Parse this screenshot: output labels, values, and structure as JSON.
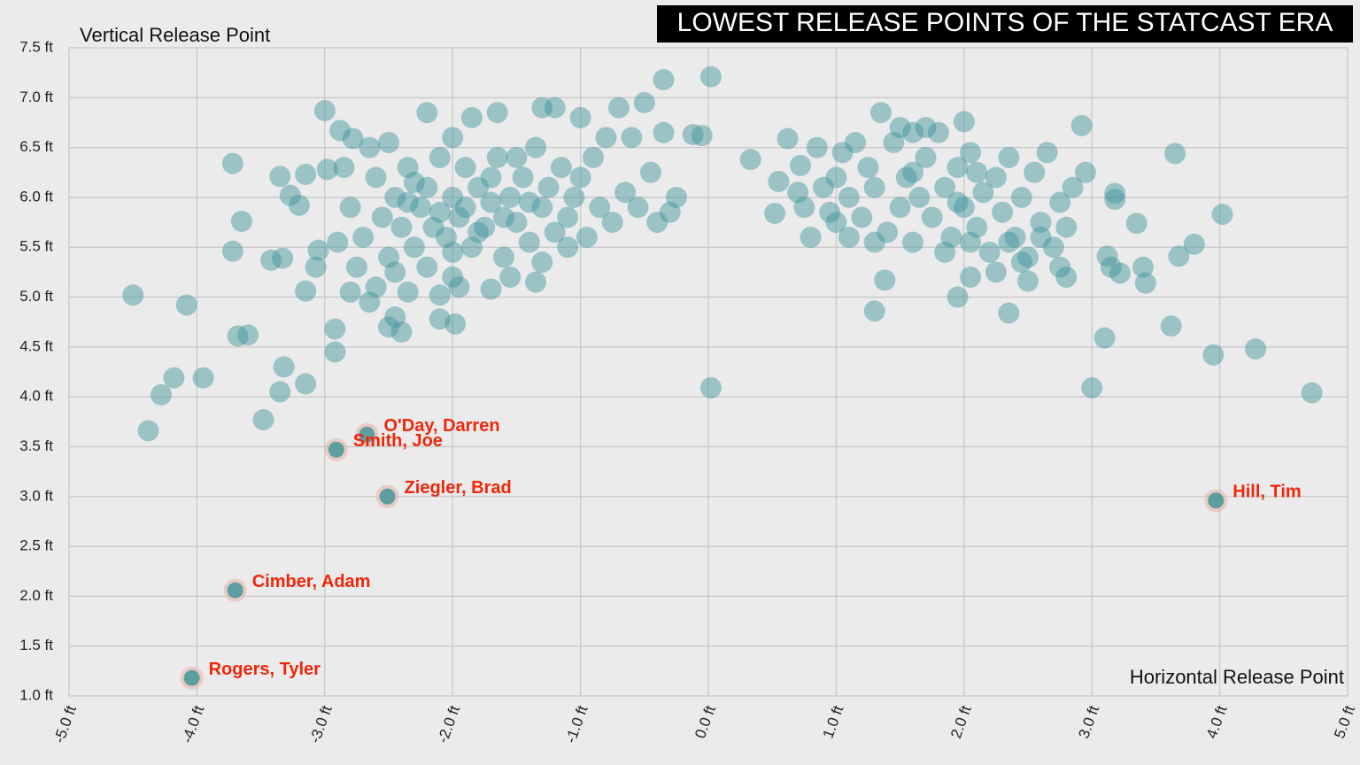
{
  "chart_data": {
    "type": "scatter",
    "title": "LOWEST RELEASE POINTS OF THE STATCAST ERA",
    "y_label": "Vertical Release Point",
    "x_label": "Horizontal Release Point",
    "color": "#3a9399",
    "highlight_color": "#f0260a",
    "grid": true,
    "xlim": [
      -5,
      5
    ],
    "ylim": [
      1,
      7.5
    ],
    "xticks": [
      {
        "value": -5,
        "label": "-5.0 ft"
      },
      {
        "value": -4,
        "label": "-4.0 ft"
      },
      {
        "value": -3,
        "label": "-3.0 ft"
      },
      {
        "value": -2,
        "label": "-2.0 ft"
      },
      {
        "value": -1,
        "label": "-1.0 ft"
      },
      {
        "value": 0,
        "label": "0.0 ft"
      },
      {
        "value": 1,
        "label": "1.0 ft"
      },
      {
        "value": 2,
        "label": "2.0 ft"
      },
      {
        "value": 3,
        "label": "3.0 ft"
      },
      {
        "value": 4,
        "label": "4.0 ft"
      },
      {
        "value": 5,
        "label": "5.0 ft"
      }
    ],
    "yticks": [
      {
        "value": 1,
        "label": "1.0 ft"
      },
      {
        "value": 1.5,
        "label": "1.5 ft"
      },
      {
        "value": 2,
        "label": "2.0 ft"
      },
      {
        "value": 2.5,
        "label": "2.5 ft"
      },
      {
        "value": 3,
        "label": "3.0 ft"
      },
      {
        "value": 3.5,
        "label": "3.5 ft"
      },
      {
        "value": 4,
        "label": "4.0 ft"
      },
      {
        "value": 4.5,
        "label": "4.5 ft"
      },
      {
        "value": 5,
        "label": "5.0 ft"
      },
      {
        "value": 5.5,
        "label": "5.5 ft"
      },
      {
        "value": 6,
        "label": "6.0 ft"
      },
      {
        "value": 6.5,
        "label": "6.5 ft"
      },
      {
        "value": 7,
        "label": "7.0 ft"
      },
      {
        "value": 7.5,
        "label": "7.5 ft"
      }
    ],
    "points": [
      {
        "x": -4.5,
        "y": 5.02
      },
      {
        "x": -4.08,
        "y": 4.92
      },
      {
        "x": -4.28,
        "y": 4.02
      },
      {
        "x": -4.38,
        "y": 3.66
      },
      {
        "x": -4.18,
        "y": 4.19
      },
      {
        "x": -3.95,
        "y": 4.19
      },
      {
        "x": -3.72,
        "y": 6.34
      },
      {
        "x": -3.72,
        "y": 5.46
      },
      {
        "x": -3.68,
        "y": 4.61
      },
      {
        "x": -3.6,
        "y": 4.62
      },
      {
        "x": -3.65,
        "y": 5.76
      },
      {
        "x": -3.48,
        "y": 3.77
      },
      {
        "x": -3.35,
        "y": 4.05
      },
      {
        "x": -3.32,
        "y": 4.3
      },
      {
        "x": -3.42,
        "y": 5.37
      },
      {
        "x": -3.33,
        "y": 5.39
      },
      {
        "x": -3.15,
        "y": 4.13
      },
      {
        "x": -2.92,
        "y": 4.45
      },
      {
        "x": -2.92,
        "y": 4.68
      },
      {
        "x": -3.15,
        "y": 5.06
      },
      {
        "x": -3.07,
        "y": 5.3
      },
      {
        "x": -3.27,
        "y": 6.02
      },
      {
        "x": -3.35,
        "y": 6.21
      },
      {
        "x": -3.0,
        "y": 6.87
      },
      {
        "x": -2.88,
        "y": 6.67
      },
      {
        "x": -2.78,
        "y": 6.59
      },
      {
        "x": -3.15,
        "y": 6.23
      },
      {
        "x": -3.05,
        "y": 5.47
      },
      {
        "x": -2.98,
        "y": 6.28
      },
      {
        "x": -3.2,
        "y": 5.92
      },
      {
        "x": -2.8,
        "y": 5.05
      },
      {
        "x": -2.65,
        "y": 4.95
      },
      {
        "x": -2.5,
        "y": 4.7
      },
      {
        "x": -2.4,
        "y": 4.65
      },
      {
        "x": -2.45,
        "y": 4.8
      },
      {
        "x": -2.1,
        "y": 4.78
      },
      {
        "x": -1.98,
        "y": 4.73
      },
      {
        "x": -2.35,
        "y": 5.05
      },
      {
        "x": -2.1,
        "y": 5.02
      },
      {
        "x": -1.7,
        "y": 5.08
      },
      {
        "x": -1.35,
        "y": 5.15
      },
      {
        "x": -2.8,
        "y": 5.9
      },
      {
        "x": -2.7,
        "y": 5.6
      },
      {
        "x": -2.6,
        "y": 6.2
      },
      {
        "x": -2.55,
        "y": 5.8
      },
      {
        "x": -2.5,
        "y": 5.4
      },
      {
        "x": -2.45,
        "y": 6.0
      },
      {
        "x": -2.4,
        "y": 5.7
      },
      {
        "x": -2.35,
        "y": 6.3
      },
      {
        "x": -2.3,
        "y": 5.5
      },
      {
        "x": -2.25,
        "y": 5.9
      },
      {
        "x": -2.2,
        "y": 6.1
      },
      {
        "x": -2.2,
        "y": 5.3
      },
      {
        "x": -2.15,
        "y": 5.7
      },
      {
        "x": -2.1,
        "y": 6.4
      },
      {
        "x": -2.05,
        "y": 5.6
      },
      {
        "x": -2.0,
        "y": 6.0
      },
      {
        "x": -2.0,
        "y": 5.2
      },
      {
        "x": -1.95,
        "y": 5.8
      },
      {
        "x": -1.9,
        "y": 6.3
      },
      {
        "x": -1.85,
        "y": 5.5
      },
      {
        "x": -1.8,
        "y": 6.1
      },
      {
        "x": -1.75,
        "y": 5.7
      },
      {
        "x": -1.7,
        "y": 5.95
      },
      {
        "x": -1.65,
        "y": 6.4
      },
      {
        "x": -1.6,
        "y": 5.4
      },
      {
        "x": -1.55,
        "y": 6.0
      },
      {
        "x": -1.5,
        "y": 5.75
      },
      {
        "x": -1.45,
        "y": 6.2
      },
      {
        "x": -1.4,
        "y": 5.55
      },
      {
        "x": -1.35,
        "y": 6.5
      },
      {
        "x": -1.3,
        "y": 5.9
      },
      {
        "x": -1.25,
        "y": 6.1
      },
      {
        "x": -1.2,
        "y": 5.65
      },
      {
        "x": -1.15,
        "y": 6.3
      },
      {
        "x": -1.1,
        "y": 5.8
      },
      {
        "x": -1.05,
        "y": 6.0
      },
      {
        "x": -1.0,
        "y": 6.2
      },
      {
        "x": -0.95,
        "y": 5.6
      },
      {
        "x": -0.9,
        "y": 6.4
      },
      {
        "x": -0.85,
        "y": 5.9
      },
      {
        "x": -0.8,
        "y": 6.6
      },
      {
        "x": -0.75,
        "y": 5.75
      },
      {
        "x": -0.7,
        "y": 6.9
      },
      {
        "x": -0.65,
        "y": 6.05
      },
      {
        "x": -0.6,
        "y": 6.6
      },
      {
        "x": -0.55,
        "y": 5.9
      },
      {
        "x": -0.5,
        "y": 6.95
      },
      {
        "x": -0.45,
        "y": 6.25
      },
      {
        "x": -0.4,
        "y": 5.75
      },
      {
        "x": -0.35,
        "y": 6.65
      },
      {
        "x": -0.3,
        "y": 5.85
      },
      {
        "x": -0.25,
        "y": 6.0
      },
      {
        "x": -2.65,
        "y": 6.5
      },
      {
        "x": -2.5,
        "y": 6.55
      },
      {
        "x": -2.2,
        "y": 6.85
      },
      {
        "x": -2.0,
        "y": 6.6
      },
      {
        "x": -1.85,
        "y": 6.8
      },
      {
        "x": -1.65,
        "y": 6.85
      },
      {
        "x": -1.3,
        "y": 6.9
      },
      {
        "x": -1.2,
        "y": 6.9
      },
      {
        "x": -1.0,
        "y": 6.8
      },
      {
        "x": -2.75,
        "y": 5.3
      },
      {
        "x": -2.6,
        "y": 5.1
      },
      {
        "x": -2.45,
        "y": 5.25
      },
      {
        "x": -1.95,
        "y": 5.1
      },
      {
        "x": -1.55,
        "y": 5.2
      },
      {
        "x": -1.3,
        "y": 5.35
      },
      {
        "x": -1.1,
        "y": 5.5
      },
      {
        "x": -2.85,
        "y": 6.3
      },
      {
        "x": -2.9,
        "y": 5.55
      },
      {
        "x": -2.35,
        "y": 5.95
      },
      {
        "x": -2.1,
        "y": 5.85
      },
      {
        "x": -1.9,
        "y": 5.9
      },
      {
        "x": -1.7,
        "y": 6.2
      },
      {
        "x": -1.5,
        "y": 6.4
      },
      {
        "x": -1.4,
        "y": 5.95
      },
      {
        "x": -2.3,
        "y": 6.15
      },
      {
        "x": -2.0,
        "y": 5.45
      },
      {
        "x": -1.8,
        "y": 5.65
      },
      {
        "x": -1.6,
        "y": 5.8
      },
      {
        "x": 0.02,
        "y": 7.21
      },
      {
        "x": -0.35,
        "y": 7.18
      },
      {
        "x": 0.02,
        "y": 4.09
      },
      {
        "x": -0.05,
        "y": 6.62
      },
      {
        "x": -0.12,
        "y": 6.63
      },
      {
        "x": 0.33,
        "y": 6.38
      },
      {
        "x": 0.52,
        "y": 5.84
      },
      {
        "x": 0.55,
        "y": 6.16
      },
      {
        "x": 0.62,
        "y": 6.59
      },
      {
        "x": 0.8,
        "y": 5.6
      },
      {
        "x": 0.72,
        "y": 6.32
      },
      {
        "x": 1.0,
        "y": 6.2
      },
      {
        "x": 1.1,
        "y": 5.6
      },
      {
        "x": 1.3,
        "y": 4.86
      },
      {
        "x": 1.38,
        "y": 5.17
      },
      {
        "x": 1.35,
        "y": 6.85
      },
      {
        "x": 1.6,
        "y": 6.65
      },
      {
        "x": 1.95,
        "y": 5.0
      },
      {
        "x": 2.0,
        "y": 6.76
      },
      {
        "x": 2.35,
        "y": 4.84
      },
      {
        "x": 2.5,
        "y": 5.16
      },
      {
        "x": 2.92,
        "y": 6.72
      },
      {
        "x": 3.0,
        "y": 4.09
      },
      {
        "x": 3.1,
        "y": 4.59
      },
      {
        "x": 3.65,
        "y": 6.44
      },
      {
        "x": 3.62,
        "y": 4.71
      },
      {
        "x": 3.95,
        "y": 4.42
      },
      {
        "x": 4.02,
        "y": 5.83
      },
      {
        "x": 4.28,
        "y": 4.48
      },
      {
        "x": 4.72,
        "y": 4.04
      },
      {
        "x": 3.8,
        "y": 5.53
      },
      {
        "x": 3.42,
        "y": 5.14
      },
      {
        "x": 3.4,
        "y": 5.3
      },
      {
        "x": 3.68,
        "y": 5.41
      },
      {
        "x": 3.35,
        "y": 5.74
      },
      {
        "x": 3.18,
        "y": 5.98
      },
      {
        "x": 3.18,
        "y": 6.04
      },
      {
        "x": 3.12,
        "y": 5.41
      },
      {
        "x": 3.15,
        "y": 5.3
      },
      {
        "x": 3.22,
        "y": 5.24
      },
      {
        "x": 2.8,
        "y": 5.2
      },
      {
        "x": 2.95,
        "y": 6.25
      },
      {
        "x": 0.7,
        "y": 6.05
      },
      {
        "x": 0.75,
        "y": 5.9
      },
      {
        "x": 0.85,
        "y": 6.5
      },
      {
        "x": 0.9,
        "y": 6.1
      },
      {
        "x": 0.95,
        "y": 5.85
      },
      {
        "x": 1.05,
        "y": 6.45
      },
      {
        "x": 1.1,
        "y": 6.0
      },
      {
        "x": 1.2,
        "y": 5.8
      },
      {
        "x": 1.25,
        "y": 6.3
      },
      {
        "x": 1.3,
        "y": 6.1
      },
      {
        "x": 1.4,
        "y": 5.65
      },
      {
        "x": 1.45,
        "y": 6.55
      },
      {
        "x": 1.5,
        "y": 5.9
      },
      {
        "x": 1.55,
        "y": 6.2
      },
      {
        "x": 1.6,
        "y": 5.55
      },
      {
        "x": 1.65,
        "y": 6.0
      },
      {
        "x": 1.7,
        "y": 6.4
      },
      {
        "x": 1.75,
        "y": 5.8
      },
      {
        "x": 1.8,
        "y": 6.65
      },
      {
        "x": 1.85,
        "y": 6.1
      },
      {
        "x": 1.9,
        "y": 5.6
      },
      {
        "x": 1.95,
        "y": 6.3
      },
      {
        "x": 2.0,
        "y": 5.9
      },
      {
        "x": 2.05,
        "y": 6.45
      },
      {
        "x": 2.1,
        "y": 5.7
      },
      {
        "x": 2.15,
        "y": 6.05
      },
      {
        "x": 2.2,
        "y": 5.45
      },
      {
        "x": 2.25,
        "y": 6.2
      },
      {
        "x": 2.3,
        "y": 5.85
      },
      {
        "x": 2.35,
        "y": 6.4
      },
      {
        "x": 2.4,
        "y": 5.6
      },
      {
        "x": 2.45,
        "y": 6.0
      },
      {
        "x": 2.5,
        "y": 5.4
      },
      {
        "x": 2.55,
        "y": 6.25
      },
      {
        "x": 2.6,
        "y": 5.75
      },
      {
        "x": 2.65,
        "y": 6.45
      },
      {
        "x": 2.7,
        "y": 5.5
      },
      {
        "x": 2.75,
        "y": 5.95
      },
      {
        "x": 2.8,
        "y": 5.7
      },
      {
        "x": 2.85,
        "y": 6.1
      },
      {
        "x": 1.0,
        "y": 5.75
      },
      {
        "x": 1.3,
        "y": 5.55
      },
      {
        "x": 1.5,
        "y": 6.7
      },
      {
        "x": 1.7,
        "y": 6.7
      },
      {
        "x": 1.85,
        "y": 5.45
      },
      {
        "x": 2.05,
        "y": 5.2
      },
      {
        "x": 2.25,
        "y": 5.25
      },
      {
        "x": 2.45,
        "y": 5.35
      },
      {
        "x": 2.6,
        "y": 5.6
      },
      {
        "x": 2.75,
        "y": 5.3
      },
      {
        "x": 1.15,
        "y": 6.55
      },
      {
        "x": 1.6,
        "y": 6.25
      },
      {
        "x": 1.95,
        "y": 5.95
      },
      {
        "x": 2.1,
        "y": 6.25
      },
      {
        "x": 2.35,
        "y": 5.55
      },
      {
        "x": 2.05,
        "y": 5.55
      }
    ],
    "highlights": [
      {
        "label": "O'Day, Darren",
        "x": -2.67,
        "y": 3.62
      },
      {
        "label": "Smith, Joe",
        "x": -2.91,
        "y": 3.47
      },
      {
        "label": "Ziegler, Brad",
        "x": -2.51,
        "y": 3.0
      },
      {
        "label": "Hill, Tim",
        "x": 3.97,
        "y": 2.96
      },
      {
        "label": "Cimber, Adam",
        "x": -3.7,
        "y": 2.06
      },
      {
        "label": "Rogers, Tyler",
        "x": -4.04,
        "y": 1.18
      }
    ]
  }
}
